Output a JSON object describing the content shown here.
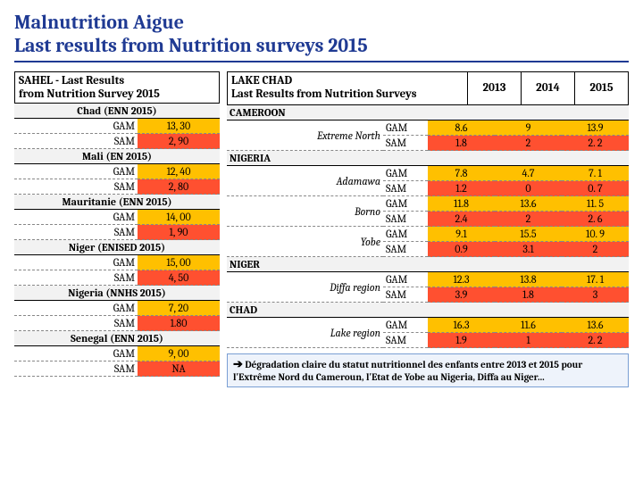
{
  "title": {
    "line1": "Malnutrition Aigue",
    "line2": "Last results from Nutrition surveys 2015"
  },
  "sahel": {
    "header_line1": "SAHEL  - Last Results",
    "header_line2": "from Nutrition Survey 2015",
    "gam_label": "GAM",
    "sam_label": "SAM",
    "countries": [
      {
        "name": "Chad (ENN 2015)",
        "gam": "13, 30",
        "sam": "2, 90"
      },
      {
        "name": "Mali (EN 2015)",
        "gam": "12, 40",
        "sam": "2, 80"
      },
      {
        "name": "Mauritanie (ENN 2015)",
        "gam": "14, 00",
        "sam": "1, 90"
      },
      {
        "name": "Niger (ENISED 2015)",
        "gam": "15, 00",
        "sam": "4, 50"
      },
      {
        "name": "Nigeria (NNHS 2015)",
        "gam": "7, 20",
        "sam": "1.80"
      },
      {
        "name": "Senegal (ENN 2015)",
        "gam": "9, 00",
        "sam": "NA"
      }
    ]
  },
  "lake": {
    "header_line1": "LAKE CHAD",
    "header_line2": "Last Results from Nutrition Surveys",
    "years": [
      "2013",
      "2014",
      "2015"
    ],
    "gam_label": "GAM",
    "sam_label": "SAM",
    "sections": [
      {
        "name": "CAMEROON",
        "regions": [
          {
            "name": "Extreme North",
            "gam": [
              "8.6",
              "9",
              "13.9"
            ],
            "sam": [
              "1.8",
              "2",
              "2. 2"
            ]
          }
        ]
      },
      {
        "name": "NIGERIA",
        "regions": [
          {
            "name": "Adamawa",
            "gam": [
              "7.8",
              "4.7",
              "7. 1"
            ],
            "sam": [
              "1.2",
              "0",
              "0. 7"
            ]
          },
          {
            "name": "Borno",
            "gam": [
              "11.8",
              "13.6",
              "11. 5"
            ],
            "sam": [
              "2.4",
              "2",
              "2. 6"
            ]
          },
          {
            "name": "Yobe",
            "gam": [
              "9.1",
              "15.5",
              "10. 9"
            ],
            "sam": [
              "0.9",
              "3.1",
              "2"
            ]
          }
        ]
      },
      {
        "name": "NIGER",
        "regions": [
          {
            "name": "Diffa region",
            "gam": [
              "12.3",
              "13.8",
              "17. 1"
            ],
            "sam": [
              "3.9",
              "1.8",
              "3"
            ]
          }
        ]
      },
      {
        "name": "CHAD",
        "regions": [
          {
            "name": "Lake region",
            "gam": [
              "16.3",
              "11.6",
              "13.6"
            ],
            "sam": [
              "1.9",
              "1",
              "2. 2"
            ]
          }
        ]
      }
    ]
  },
  "note": {
    "arrow": "➔",
    "text": "Dégradation claire du statut nutritionnel des enfants entre 2013 et 2015 pour l'Extrême Nord du Cameroun, l'Etat de Yobe au Nigeria, Diffa au Niger…"
  },
  "colors": {
    "gam": "#ffc000",
    "sam": "#ff5030",
    "title": "#1f3a93",
    "note_bg": "#eef3fb",
    "note_border": "#7a9fd4"
  }
}
